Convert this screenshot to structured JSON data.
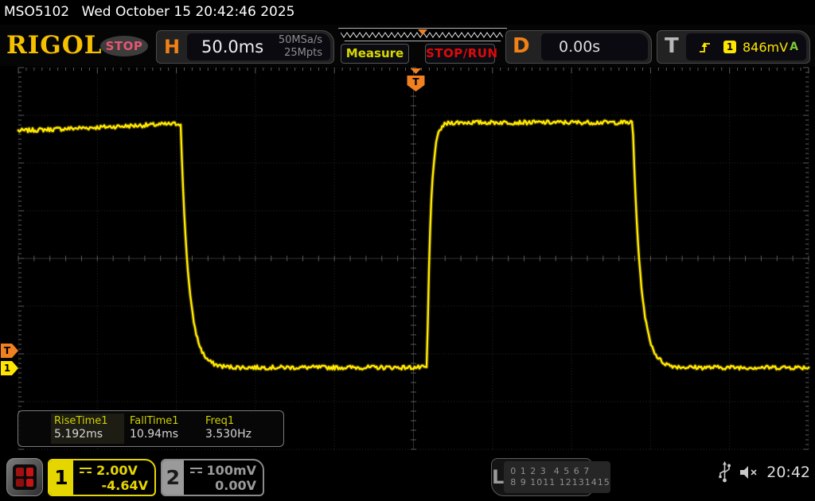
{
  "topbar": {
    "model": "MSO5102",
    "datetime": "Wed October 15 20:42:46 2025"
  },
  "header": {
    "logo": "RIGOL",
    "acq_status": "STOP",
    "h_label": "H",
    "timebase": "50.0ms",
    "sample_rate": "50MSa/s",
    "mem_depth": "25Mpts",
    "measure_label": "Measure",
    "stoprun_label": "STOP/RUN",
    "d_label": "D",
    "delay": "0.00s",
    "t_label": "T",
    "trig_source": "1",
    "trig_level": "846mV",
    "trig_mode": "A"
  },
  "measurements": {
    "items": [
      {
        "label": "RiseTime1",
        "value": "5.192ms"
      },
      {
        "label": "FallTime1",
        "value": "10.94ms"
      },
      {
        "label": "Freq1",
        "value": "3.530Hz"
      }
    ]
  },
  "channels": [
    {
      "id": "1",
      "scale": "2.00V",
      "offset": "-4.64V"
    },
    {
      "id": "2",
      "scale": "100mV",
      "offset": "0.00V"
    }
  ],
  "logic": {
    "label": "L",
    "row1": "0 1 2 3  4 5 6 7",
    "row2": "8 9 1011 12131415"
  },
  "status": {
    "clock": "20:42"
  },
  "colors": {
    "trace": "#ffe600",
    "ch1": "#e6d600",
    "ch2": "#9a9a9a",
    "trigger_orange": "#f08020",
    "logo_gold": "#f5c000",
    "stop_pink": "#e65772",
    "run_red": "#dd0a0a",
    "measure_yellow": "#d8d800",
    "trig_mode_green": "#7ec832",
    "grid": "#282828"
  },
  "chart_data": {
    "type": "line",
    "title": "Channel 1 square wave",
    "x_axis": {
      "unit": "ms",
      "time_per_div_ms": 50,
      "divisions": 10,
      "range_ms": [
        -250,
        250
      ],
      "delay_s": 0
    },
    "y_axis": {
      "unit": "V",
      "volts_per_div": 2.0,
      "divisions": 8,
      "channel_offset_label": "-4.64V"
    },
    "trigger": {
      "level_v": 0.846,
      "source_channel": 1,
      "position_ms": 0
    },
    "measurements": {
      "rise_time_ms": 5.192,
      "fall_time_ms": 10.94,
      "frequency_hz": 3.53
    },
    "waveform": {
      "shape": "square",
      "high_v_start": 9.95,
      "high_v": 10.25,
      "high_v_pulse2": 10.3,
      "low_v": 0.03,
      "edges_ms": {
        "fall1": -147.3,
        "rise": 8.6,
        "fall2": 138.7
      },
      "fall_tau_ms": 4.98,
      "rise_tau_ms": 2.36,
      "noise_vpp": 0.17
    }
  }
}
